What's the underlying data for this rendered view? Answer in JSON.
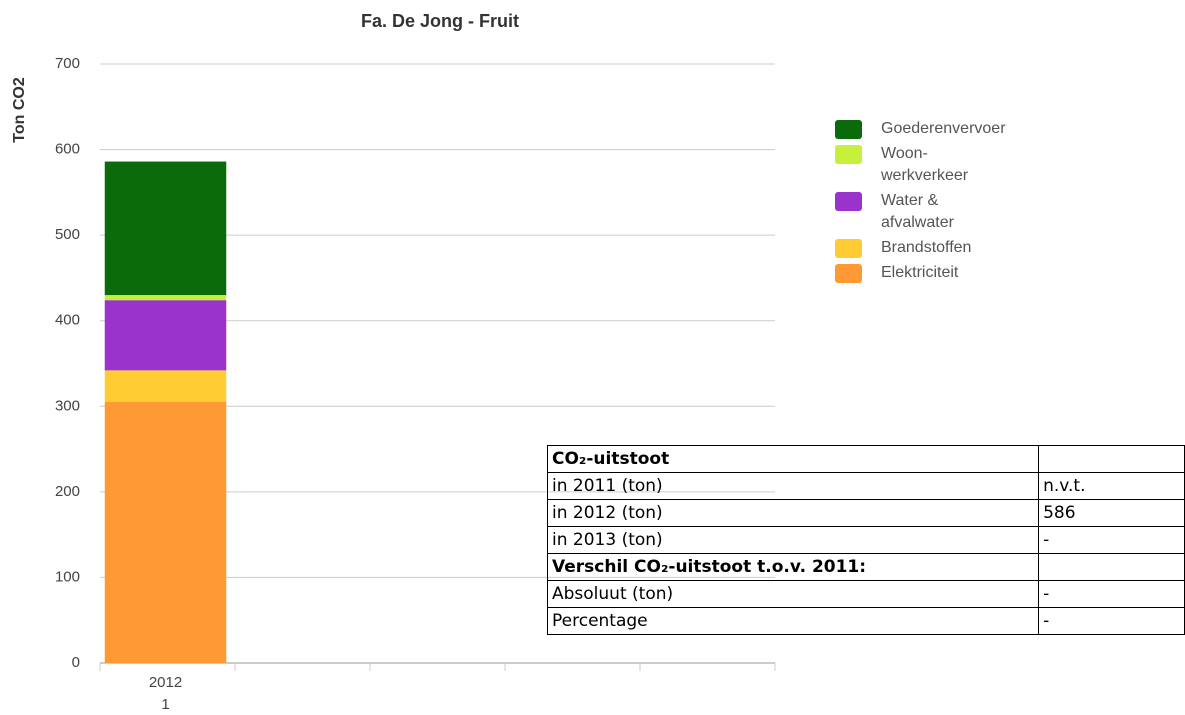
{
  "chart_data": {
    "type": "stacked_bar",
    "title": "Fa. De Jong - Fruit",
    "y_label": "Ton CO2",
    "categories": [
      "2012",
      null,
      null,
      null,
      null
    ],
    "category_sublabels": [
      "1",
      null,
      null,
      null,
      null
    ],
    "series": [
      {
        "name": "Elektriciteit",
        "color": "#ff9933",
        "values": [
          305,
          null,
          null,
          null,
          null
        ]
      },
      {
        "name": "Brandstoffen",
        "color": "#ffcc33",
        "values": [
          37,
          null,
          null,
          null,
          null
        ]
      },
      {
        "name": "Water & afvalwater",
        "color": "#9933cc",
        "values": [
          82,
          null,
          null,
          null,
          null
        ]
      },
      {
        "name": "Woon-werkverkeer",
        "color": "#c6f03c",
        "values": [
          6,
          null,
          null,
          null,
          null
        ]
      },
      {
        "name": "Goederenvervoer",
        "color": "#0b6b0b",
        "values": [
          156,
          null,
          null,
          null,
          null
        ]
      }
    ],
    "ylim": [
      0,
      700
    ],
    "yticks": [
      0,
      100,
      200,
      300,
      400,
      500,
      600,
      700
    ],
    "grid": true,
    "legend": "right"
  },
  "table": {
    "rows": [
      [
        "CO₂-uitstoot"
      ],
      [
        "in 2011 (ton)",
        "n.v.t."
      ],
      [
        "in 2012 (ton)",
        "586"
      ],
      [
        "in 2013 (ton)",
        "-"
      ],
      [
        "Verschil CO₂-uitstoot t.o.v. 2011:"
      ],
      [
        "Absoluut (ton)",
        "-"
      ],
      [
        "Percentage",
        "-"
      ]
    ]
  }
}
